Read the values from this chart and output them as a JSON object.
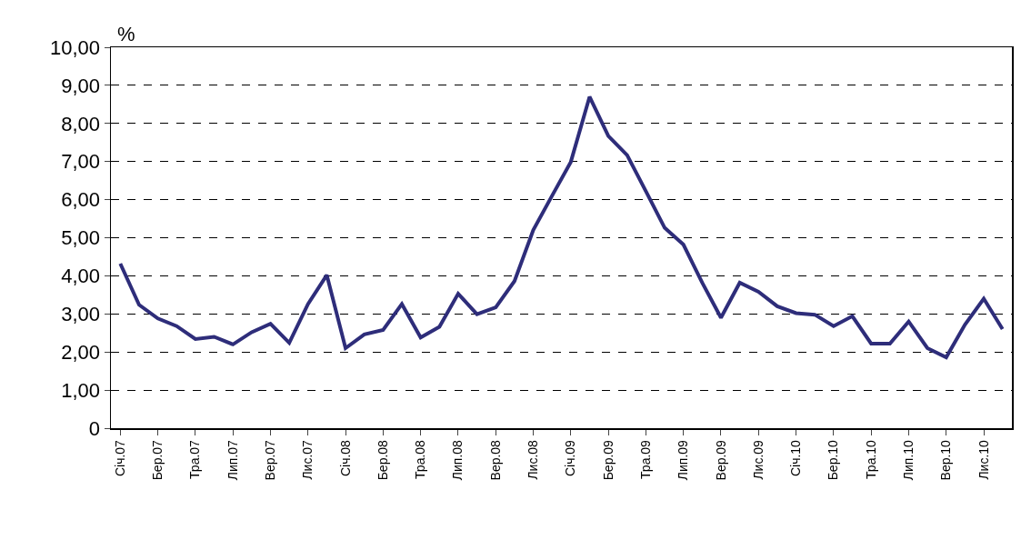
{
  "chart_data": {
    "type": "line",
    "ylabel": "%",
    "categories": [
      "Січ.07",
      null,
      "Бер.07",
      null,
      "Тра.07",
      null,
      "Лип.07",
      null,
      "Вер.07",
      null,
      "Лис.07",
      null,
      "Січ.08",
      null,
      "Бер.08",
      null,
      "Тра.08",
      null,
      "Лип.08",
      null,
      "Вер.08",
      null,
      "Лис.08",
      null,
      "Січ.09",
      null,
      "Бер.09",
      null,
      "Тра.09",
      null,
      "Лип.09",
      null,
      "Вер.09",
      null,
      "Лис.09",
      null,
      "Січ.10",
      null,
      "Бер.10",
      null,
      "Тра.10",
      null,
      "Лип.10",
      null,
      "Вер.10",
      null,
      "Лис.10",
      null
    ],
    "series": [
      {
        "color": "#2e2d7a",
        "values": [
          4.32,
          3.24,
          2.88,
          2.68,
          2.34,
          2.4,
          2.2,
          2.52,
          2.74,
          2.24,
          3.26,
          4.02,
          2.1,
          2.46,
          2.58,
          3.26,
          2.38,
          2.66,
          3.53,
          2.99,
          3.17,
          3.86,
          5.2,
          6.1,
          6.99,
          8.7,
          7.67,
          7.17,
          6.22,
          5.26,
          4.82,
          3.82,
          2.9,
          3.82,
          3.58,
          3.2,
          3.02,
          2.98,
          2.68,
          2.94,
          2.22,
          2.22,
          2.8,
          2.1,
          1.86,
          2.72,
          3.4,
          2.6
        ]
      }
    ],
    "ylim": [
      0,
      10
    ],
    "yticks": [
      0,
      {
        "value": 1,
        "label": "1,00"
      },
      {
        "value": 2,
        "label": "2,00"
      },
      {
        "value": 3,
        "label": "3,00"
      },
      {
        "value": 4,
        "label": "4,00"
      },
      {
        "value": 5,
        "label": "5,00"
      },
      {
        "value": 6,
        "label": "6,00"
      },
      {
        "value": 7,
        "label": "7,00"
      },
      {
        "value": 8,
        "label": "8,00"
      },
      {
        "value": 9,
        "label": "9,00"
      },
      {
        "value": 10,
        "label": "10,00"
      }
    ],
    "grid": "y",
    "line_style": "solid",
    "marker": "none"
  }
}
